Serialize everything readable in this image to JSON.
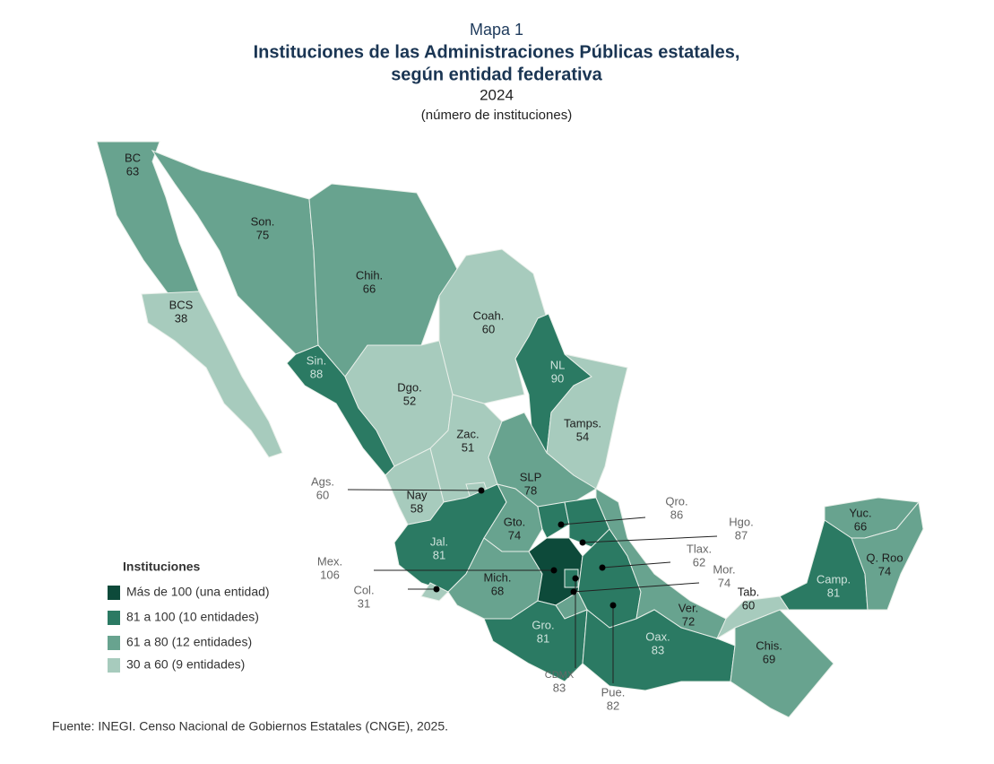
{
  "header": {
    "kicker": "Mapa 1",
    "title_lines": [
      "Instituciones de las Administraciones Públicas estatales,",
      "según entidad federativa"
    ],
    "year": "2024",
    "unit": "(número de instituciones)"
  },
  "states": [
    {
      "abbr": "BC",
      "value": 63,
      "color": "#68a38f"
    },
    {
      "abbr": "BCS",
      "value": 38,
      "color": "#a7cbbd"
    },
    {
      "abbr": "Son.",
      "value": 75,
      "color": "#68a38f"
    },
    {
      "abbr": "Chih.",
      "value": 66,
      "color": "#68a38f"
    },
    {
      "abbr": "Coah.",
      "value": 60,
      "color": "#a7cbbd"
    },
    {
      "abbr": "NL",
      "value": 90,
      "color": "#2b7a63"
    },
    {
      "abbr": "Tamps.",
      "value": 54,
      "color": "#a7cbbd"
    },
    {
      "abbr": "Sin.",
      "value": 88,
      "color": "#2b7a63"
    },
    {
      "abbr": "Dgo.",
      "value": 52,
      "color": "#a7cbbd"
    },
    {
      "abbr": "Zac.",
      "value": 51,
      "color": "#a7cbbd"
    },
    {
      "abbr": "SLP",
      "value": 78,
      "color": "#68a38f"
    },
    {
      "abbr": "Nay",
      "value": 58,
      "color": "#a7cbbd"
    },
    {
      "abbr": "Ags.",
      "value": 60,
      "color": "#a7cbbd"
    },
    {
      "abbr": "Jal.",
      "value": 81,
      "color": "#2b7a63"
    },
    {
      "abbr": "Col.",
      "value": 31,
      "color": "#a7cbbd"
    },
    {
      "abbr": "Gto.",
      "value": 74,
      "color": "#68a38f"
    },
    {
      "abbr": "Qro.",
      "value": 86,
      "color": "#2b7a63"
    },
    {
      "abbr": "Hgo.",
      "value": 87,
      "color": "#2b7a63"
    },
    {
      "abbr": "Mich.",
      "value": 68,
      "color": "#68a38f"
    },
    {
      "abbr": "Mex.",
      "value": 106,
      "color": "#0d4a3a"
    },
    {
      "abbr": "CDMX",
      "value": 83,
      "color": "#2b7a63"
    },
    {
      "abbr": "Tlax.",
      "value": 62,
      "color": "#68a38f"
    },
    {
      "abbr": "Mor.",
      "value": 74,
      "color": "#68a38f"
    },
    {
      "abbr": "Pue.",
      "value": 82,
      "color": "#2b7a63"
    },
    {
      "abbr": "Ver.",
      "value": 72,
      "color": "#68a38f"
    },
    {
      "abbr": "Gro.",
      "value": 81,
      "color": "#2b7a63"
    },
    {
      "abbr": "Oax.",
      "value": 83,
      "color": "#2b7a63"
    },
    {
      "abbr": "Chis.",
      "value": 69,
      "color": "#68a38f"
    },
    {
      "abbr": "Tab.",
      "value": 60,
      "color": "#a7cbbd"
    },
    {
      "abbr": "Camp.",
      "value": 81,
      "color": "#2b7a63"
    },
    {
      "abbr": "Yuc.",
      "value": 66,
      "color": "#68a38f"
    },
    {
      "abbr": "Q. Roo",
      "value": 74,
      "color": "#68a38f"
    }
  ],
  "legend": {
    "title": "Instituciones",
    "items": [
      {
        "label": "Más de 100 (una entidad)",
        "color": "#0d4a3a"
      },
      {
        "label": "81 a 100 (10 entidades)",
        "color": "#2b7a63"
      },
      {
        "label": "61 a 80 (12 entidades)",
        "color": "#68a38f"
      },
      {
        "label": "30 a 60 (9 entidades)",
        "color": "#a7cbbd"
      }
    ]
  },
  "source": "Fuente: INEGI. Censo Nacional de Gobiernos Estatales (CNGE), 2025."
}
